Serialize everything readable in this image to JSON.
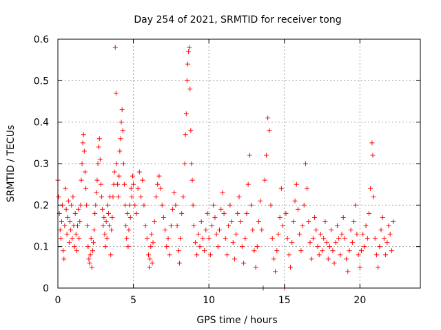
{
  "chart_data": {
    "type": "scatter",
    "title": "Day 254 of 2021, SRMTID for receiver tong",
    "xlabel": "GPS time / hours",
    "ylabel": "SRMTID / TECUs",
    "xlim": [
      0,
      24
    ],
    "ylim": [
      0,
      0.6
    ],
    "xticks": [
      0,
      5,
      10,
      15,
      20
    ],
    "yticks": [
      0,
      0.1,
      0.2,
      0.3,
      0.4,
      0.5,
      0.6
    ],
    "xtick_labels": [
      "0",
      "5",
      "10",
      "15",
      "20"
    ],
    "ytick_labels": [
      "0",
      "0.1",
      "0.2",
      "0.3",
      "0.4",
      "0.5",
      "0.6"
    ],
    "grid": true,
    "marker": "+",
    "color": "#ff0000",
    "series": [
      {
        "name": "SRMTID",
        "points": [
          [
            0.0,
            0.26
          ],
          [
            0.05,
            0.22
          ],
          [
            0.1,
            0.18
          ],
          [
            0.15,
            0.14
          ],
          [
            0.2,
            0.12
          ],
          [
            0.25,
            0.16
          ],
          [
            0.3,
            0.2
          ],
          [
            0.35,
            0.09
          ],
          [
            0.4,
            0.07
          ],
          [
            0.45,
            0.15
          ],
          [
            0.5,
            0.24
          ],
          [
            0.55,
            0.19
          ],
          [
            0.6,
            0.13
          ],
          [
            0.65,
            0.17
          ],
          [
            0.7,
            0.21
          ],
          [
            0.75,
            0.11
          ],
          [
            0.8,
            0.16
          ],
          [
            0.85,
            0.14
          ],
          [
            0.9,
            0.2
          ],
          [
            0.95,
            0.12
          ],
          [
            1.0,
            0.22
          ],
          [
            1.05,
            0.15
          ],
          [
            1.1,
            0.1
          ],
          [
            1.15,
            0.18
          ],
          [
            1.2,
            0.13
          ],
          [
            1.25,
            0.09
          ],
          [
            1.3,
            0.15
          ],
          [
            1.35,
            0.19
          ],
          [
            1.4,
            0.12
          ],
          [
            1.45,
            0.16
          ],
          [
            1.5,
            0.2
          ],
          [
            1.55,
            0.26
          ],
          [
            1.6,
            0.3
          ],
          [
            1.65,
            0.35
          ],
          [
            1.7,
            0.37
          ],
          [
            1.75,
            0.33
          ],
          [
            1.8,
            0.28
          ],
          [
            1.85,
            0.24
          ],
          [
            1.9,
            0.2
          ],
          [
            1.95,
            0.15
          ],
          [
            2.0,
            0.1
          ],
          [
            2.05,
            0.07
          ],
          [
            2.1,
            0.06
          ],
          [
            2.15,
            0.08
          ],
          [
            2.2,
            0.12
          ],
          [
            2.25,
            0.05
          ],
          [
            2.3,
            0.09
          ],
          [
            2.35,
            0.11
          ],
          [
            2.4,
            0.14
          ],
          [
            2.45,
            0.18
          ],
          [
            2.5,
            0.2
          ],
          [
            2.55,
            0.23
          ],
          [
            2.6,
            0.26
          ],
          [
            2.65,
            0.3
          ],
          [
            2.7,
            0.34
          ],
          [
            2.75,
            0.36
          ],
          [
            2.8,
            0.31
          ],
          [
            2.85,
            0.25
          ],
          [
            2.9,
            0.22
          ],
          [
            2.95,
            0.19
          ],
          [
            3.0,
            0.15
          ],
          [
            3.05,
            0.17
          ],
          [
            3.1,
            0.13
          ],
          [
            3.15,
            0.1
          ],
          [
            3.2,
            0.16
          ],
          [
            3.25,
            0.12
          ],
          [
            3.3,
            0.2
          ],
          [
            3.35,
            0.18
          ],
          [
            3.4,
            0.15
          ],
          [
            3.45,
            0.22
          ],
          [
            3.5,
            0.08
          ],
          [
            3.55,
            0.14
          ],
          [
            3.6,
            0.17
          ],
          [
            3.65,
            0.22
          ],
          [
            3.7,
            0.25
          ],
          [
            3.75,
            0.28
          ],
          [
            3.8,
            0.58
          ],
          [
            3.85,
            0.47
          ],
          [
            3.9,
            0.3
          ],
          [
            3.95,
            0.25
          ],
          [
            4.0,
            0.22
          ],
          [
            4.05,
            0.27
          ],
          [
            4.1,
            0.33
          ],
          [
            4.15,
            0.36
          ],
          [
            4.2,
            0.4
          ],
          [
            4.25,
            0.43
          ],
          [
            4.3,
            0.38
          ],
          [
            4.35,
            0.3
          ],
          [
            4.4,
            0.25
          ],
          [
            4.45,
            0.2
          ],
          [
            4.5,
            0.15
          ],
          [
            4.55,
            0.12
          ],
          [
            4.6,
            0.18
          ],
          [
            4.65,
            0.1
          ],
          [
            4.7,
            0.14
          ],
          [
            4.75,
            0.2
          ],
          [
            4.8,
            0.17
          ],
          [
            4.85,
            0.24
          ],
          [
            4.9,
            0.22
          ],
          [
            4.95,
            0.27
          ],
          [
            5.0,
            0.25
          ],
          [
            5.1,
            0.2
          ],
          [
            5.2,
            0.18
          ],
          [
            5.3,
            0.24
          ],
          [
            5.4,
            0.28
          ],
          [
            5.5,
            0.22
          ],
          [
            5.6,
            0.26
          ],
          [
            5.7,
            0.2
          ],
          [
            5.8,
            0.15
          ],
          [
            5.9,
            0.12
          ],
          [
            6.0,
            0.08
          ],
          [
            6.05,
            0.05
          ],
          [
            6.1,
            0.07
          ],
          [
            6.15,
            0.1
          ],
          [
            6.2,
            0.13
          ],
          [
            6.25,
            0.06
          ],
          [
            6.3,
            0.11
          ],
          [
            6.4,
            0.16
          ],
          [
            6.5,
            0.22
          ],
          [
            6.6,
            0.25
          ],
          [
            6.7,
            0.27
          ],
          [
            6.8,
            0.24
          ],
          [
            6.9,
            0.2
          ],
          [
            7.0,
            0.17
          ],
          [
            7.1,
            0.14
          ],
          [
            7.2,
            0.1
          ],
          [
            7.3,
            0.12
          ],
          [
            7.4,
            0.08
          ],
          [
            7.5,
            0.15
          ],
          [
            7.6,
            0.19
          ],
          [
            7.7,
            0.23
          ],
          [
            7.8,
            0.2
          ],
          [
            7.9,
            0.15
          ],
          [
            8.0,
            0.09
          ],
          [
            8.05,
            0.06
          ],
          [
            8.1,
            0.12
          ],
          [
            8.2,
            0.18
          ],
          [
            8.3,
            0.22
          ],
          [
            8.4,
            0.3
          ],
          [
            8.45,
            0.37
          ],
          [
            8.5,
            0.42
          ],
          [
            8.55,
            0.5
          ],
          [
            8.6,
            0.54
          ],
          [
            8.65,
            0.57
          ],
          [
            8.7,
            0.58
          ],
          [
            8.75,
            0.48
          ],
          [
            8.8,
            0.38
          ],
          [
            8.85,
            0.3
          ],
          [
            8.9,
            0.26
          ],
          [
            8.95,
            0.2
          ],
          [
            9.0,
            0.15
          ],
          [
            9.1,
            0.11
          ],
          [
            9.2,
            0.08
          ],
          [
            9.3,
            0.13
          ],
          [
            9.4,
            0.1
          ],
          [
            9.5,
            0.16
          ],
          [
            9.6,
            0.12
          ],
          [
            9.7,
            0.09
          ],
          [
            9.8,
            0.14
          ],
          [
            9.9,
            0.18
          ],
          [
            10.0,
            0.12
          ],
          [
            10.1,
            0.08
          ],
          [
            10.2,
            0.15
          ],
          [
            10.3,
            0.2
          ],
          [
            10.4,
            0.17
          ],
          [
            10.5,
            0.13
          ],
          [
            10.6,
            0.1
          ],
          [
            10.7,
            0.14
          ],
          [
            10.8,
            0.19
          ],
          [
            10.9,
            0.23
          ],
          [
            11.0,
            0.18
          ],
          [
            11.1,
            0.12
          ],
          [
            11.2,
            0.08
          ],
          [
            11.3,
            0.15
          ],
          [
            11.4,
            0.2
          ],
          [
            11.5,
            0.16
          ],
          [
            11.6,
            0.11
          ],
          [
            11.7,
            0.07
          ],
          [
            11.8,
            0.13
          ],
          [
            11.9,
            0.18
          ],
          [
            12.0,
            0.22
          ],
          [
            12.1,
            0.16
          ],
          [
            12.2,
            0.1
          ],
          [
            12.3,
            0.06
          ],
          [
            12.4,
            0.12
          ],
          [
            12.5,
            0.18
          ],
          [
            12.6,
            0.25
          ],
          [
            12.7,
            0.32
          ],
          [
            12.8,
            0.2
          ],
          [
            12.9,
            0.14
          ],
          [
            13.0,
            0.09
          ],
          [
            13.1,
            0.05
          ],
          [
            13.2,
            0.1
          ],
          [
            13.3,
            0.16
          ],
          [
            13.4,
            0.21
          ],
          [
            13.5,
            0.14
          ],
          [
            13.6,
            0.0
          ],
          [
            13.7,
            0.26
          ],
          [
            13.8,
            0.32
          ],
          [
            13.9,
            0.41
          ],
          [
            14.0,
            0.38
          ],
          [
            14.1,
            0.2
          ],
          [
            14.2,
            0.12
          ],
          [
            14.3,
            0.07
          ],
          [
            14.4,
            0.04
          ],
          [
            14.5,
            0.09
          ],
          [
            14.6,
            0.13
          ],
          [
            14.7,
            0.17
          ],
          [
            14.8,
            0.24
          ],
          [
            14.9,
            0.15
          ],
          [
            15.0,
            0.0
          ],
          [
            15.1,
            0.18
          ],
          [
            15.2,
            0.12
          ],
          [
            15.3,
            0.08
          ],
          [
            15.4,
            0.05
          ],
          [
            15.5,
            0.11
          ],
          [
            15.6,
            0.16
          ],
          [
            15.7,
            0.21
          ],
          [
            15.8,
            0.25
          ],
          [
            15.9,
            0.19
          ],
          [
            16.0,
            0.13
          ],
          [
            16.1,
            0.09
          ],
          [
            16.2,
            0.15
          ],
          [
            16.3,
            0.2
          ],
          [
            16.4,
            0.3
          ],
          [
            16.5,
            0.24
          ],
          [
            16.6,
            0.16
          ],
          [
            16.7,
            0.11
          ],
          [
            16.8,
            0.07
          ],
          [
            16.9,
            0.12
          ],
          [
            17.0,
            0.17
          ],
          [
            17.1,
            0.14
          ],
          [
            17.2,
            0.1
          ],
          [
            17.3,
            0.08
          ],
          [
            17.4,
            0.13
          ],
          [
            17.5,
            0.09
          ],
          [
            17.6,
            0.12
          ],
          [
            17.7,
            0.16
          ],
          [
            17.8,
            0.11
          ],
          [
            17.9,
            0.07
          ],
          [
            18.0,
            0.1
          ],
          [
            18.1,
            0.14
          ],
          [
            18.2,
            0.09
          ],
          [
            18.3,
            0.06
          ],
          [
            18.4,
            0.11
          ],
          [
            18.5,
            0.15
          ],
          [
            18.6,
            0.12
          ],
          [
            18.7,
            0.08
          ],
          [
            18.8,
            0.13
          ],
          [
            18.9,
            0.17
          ],
          [
            19.0,
            0.12
          ],
          [
            19.1,
            0.07
          ],
          [
            19.2,
            0.04
          ],
          [
            19.3,
            0.09
          ],
          [
            19.4,
            0.14
          ],
          [
            19.5,
            0.11
          ],
          [
            19.6,
            0.16
          ],
          [
            19.7,
            0.2
          ],
          [
            19.8,
            0.13
          ],
          [
            19.9,
            0.08
          ],
          [
            20.0,
            0.05
          ],
          [
            20.1,
            0.09
          ],
          [
            20.2,
            0.13
          ],
          [
            20.3,
            0.1
          ],
          [
            20.4,
            0.15
          ],
          [
            20.5,
            0.12
          ],
          [
            20.6,
            0.18
          ],
          [
            20.7,
            0.24
          ],
          [
            20.8,
            0.35
          ],
          [
            20.85,
            0.32
          ],
          [
            20.9,
            0.22
          ],
          [
            21.0,
            0.12
          ],
          [
            21.1,
            0.08
          ],
          [
            21.2,
            0.05
          ],
          [
            21.3,
            0.1
          ],
          [
            21.4,
            0.14
          ],
          [
            21.5,
            0.17
          ],
          [
            21.6,
            0.12
          ],
          [
            21.7,
            0.08
          ],
          [
            21.8,
            0.11
          ],
          [
            21.9,
            0.15
          ],
          [
            22.0,
            0.13
          ],
          [
            22.1,
            0.09
          ],
          [
            22.2,
            0.16
          ]
        ]
      }
    ]
  }
}
